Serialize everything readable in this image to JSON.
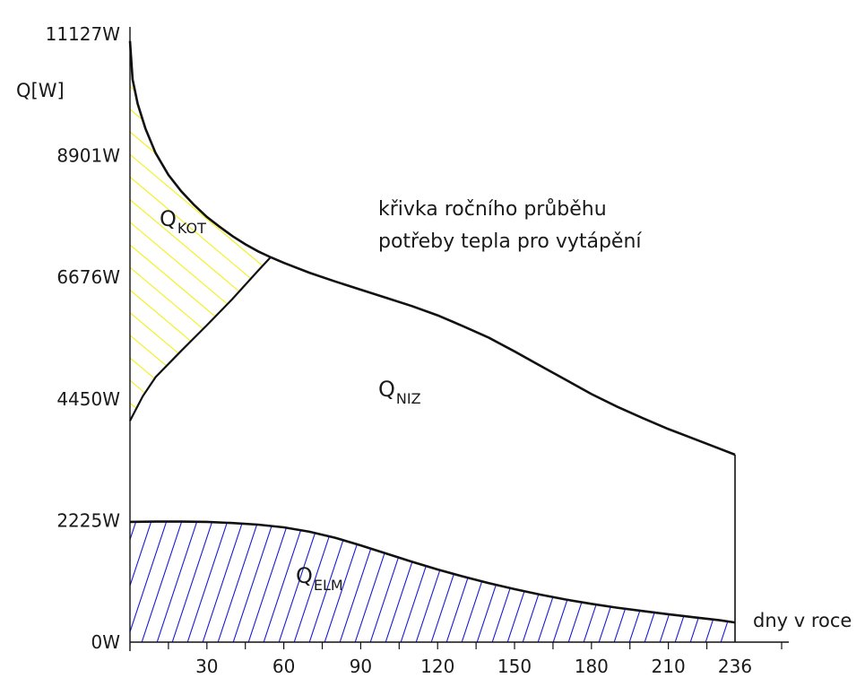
{
  "chart_data": {
    "type": "area",
    "ylabel": "Q[W]",
    "xlabel": "dny v roce",
    "ylim": [
      0,
      11127
    ],
    "xlim": [
      0,
      236
    ],
    "y_ticks": [
      {
        "value": 0,
        "label": "0W"
      },
      {
        "value": 2225,
        "label": "2225W"
      },
      {
        "value": 4450,
        "label": "4450W"
      },
      {
        "value": 6676,
        "label": "6676W"
      },
      {
        "value": 8901,
        "label": "8901W"
      },
      {
        "value": 11127,
        "label": "11127W"
      }
    ],
    "x_ticks": [
      {
        "value": 30,
        "label": "30"
      },
      {
        "value": 60,
        "label": "60"
      },
      {
        "value": 90,
        "label": "90"
      },
      {
        "value": 120,
        "label": "120"
      },
      {
        "value": 150,
        "label": "150"
      },
      {
        "value": 180,
        "label": "180"
      },
      {
        "value": 210,
        "label": "210"
      },
      {
        "value": 236,
        "label": "236"
      }
    ],
    "annotation": [
      "křivka ročního průběhu",
      "potřeby tepla pro vytápění"
    ],
    "series": [
      {
        "key": "demand",
        "x": [
          0,
          1,
          3,
          6,
          10,
          15,
          20,
          25,
          30,
          35,
          40,
          45,
          50,
          55,
          60,
          70,
          80,
          90,
          100,
          110,
          120,
          130,
          140,
          150,
          160,
          170,
          180,
          190,
          200,
          210,
          220,
          230,
          236
        ],
        "y": [
          11000,
          10300,
          9850,
          9400,
          8950,
          8550,
          8250,
          8000,
          7780,
          7600,
          7430,
          7280,
          7150,
          7040,
          6940,
          6760,
          6600,
          6450,
          6300,
          6150,
          5980,
          5780,
          5570,
          5320,
          5060,
          4800,
          4540,
          4310,
          4100,
          3900,
          3720,
          3540,
          3430
        ]
      },
      {
        "key": "elm",
        "x": [
          0,
          10,
          20,
          30,
          40,
          50,
          60,
          70,
          80,
          90,
          100,
          110,
          120,
          130,
          140,
          150,
          160,
          170,
          180,
          190,
          200,
          210,
          220,
          230,
          236
        ],
        "y": [
          2200,
          2205,
          2205,
          2200,
          2180,
          2150,
          2100,
          2020,
          1910,
          1770,
          1620,
          1470,
          1330,
          1200,
          1080,
          970,
          870,
          780,
          700,
          630,
          570,
          510,
          455,
          400,
          360
        ]
      },
      {
        "key": "kot",
        "x": [
          0,
          5,
          10,
          20,
          30,
          40,
          50,
          55
        ],
        "y": [
          4050,
          4500,
          4850,
          5330,
          5800,
          6280,
          6800,
          7050
        ]
      }
    ],
    "areas": [
      {
        "key": "kot",
        "label": "Q",
        "sub": "KOT",
        "color": "#f3f018"
      },
      {
        "key": "niz",
        "label": "Q",
        "sub": "NIZ",
        "color": "#ee1111"
      },
      {
        "key": "elm",
        "label": "Q",
        "sub": "ELM",
        "color": "#1a1ad6"
      }
    ]
  }
}
